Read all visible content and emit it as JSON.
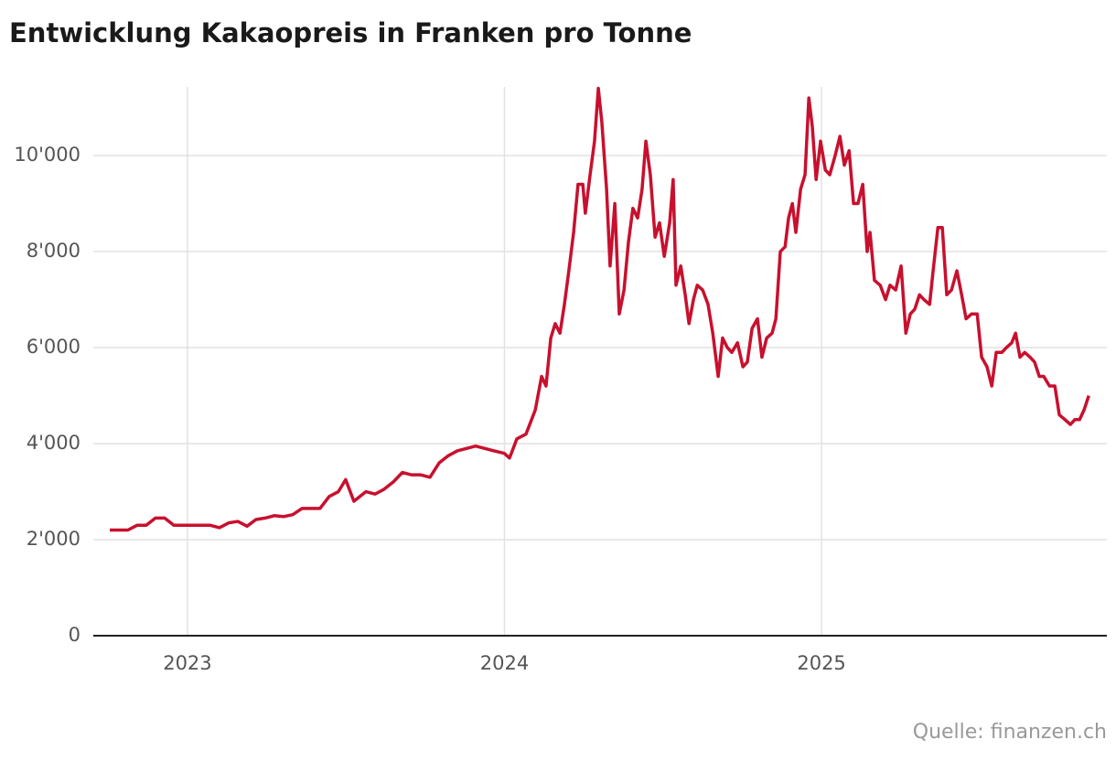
{
  "chart_data": {
    "type": "line",
    "title": "Entwicklung Kakaopreis in Franken pro Tonne",
    "source": "Quelle: finanzen.ch",
    "x": [
      2022.755,
      2022.784,
      2022.812,
      2022.841,
      2022.87,
      2022.899,
      2022.928,
      2022.957,
      2022.986,
      2023.014,
      2023.043,
      2023.072,
      2023.101,
      2023.13,
      2023.159,
      2023.188,
      2023.216,
      2023.245,
      2023.274,
      2023.303,
      2023.332,
      2023.361,
      2023.39,
      2023.418,
      2023.447,
      2023.476,
      2023.499,
      2023.525,
      2023.563,
      2023.592,
      2023.62,
      2023.649,
      2023.678,
      2023.707,
      2023.736,
      2023.765,
      2023.794,
      2023.823,
      2023.851,
      2023.88,
      2023.909,
      2023.938,
      2023.967,
      2023.999,
      2024.016,
      2024.039,
      2024.068,
      2024.097,
      2024.117,
      2024.131,
      2024.146,
      2024.16,
      2024.175,
      2024.189,
      2024.203,
      2024.218,
      2024.232,
      2024.247,
      2024.255,
      2024.27,
      2024.284,
      2024.296,
      2024.307,
      2024.322,
      2024.333,
      2024.348,
      2024.362,
      2024.377,
      2024.391,
      2024.405,
      2024.42,
      2024.434,
      2024.446,
      2024.46,
      2024.475,
      2024.489,
      2024.504,
      2024.521,
      2024.532,
      2024.541,
      2024.556,
      2024.57,
      2024.582,
      2024.596,
      2024.608,
      2024.625,
      2024.642,
      2024.657,
      2024.674,
      2024.688,
      2024.703,
      2024.717,
      2024.735,
      2024.752,
      2024.766,
      2024.781,
      2024.798,
      2024.812,
      2024.827,
      2024.844,
      2024.856,
      2024.87,
      2024.885,
      2024.896,
      2024.908,
      2024.919,
      2024.934,
      2024.948,
      2024.96,
      2024.971,
      2024.983,
      2024.997,
      2025.012,
      2025.026,
      2025.043,
      2025.058,
      2025.072,
      2025.087,
      2025.101,
      2025.115,
      2025.13,
      2025.144,
      2025.153,
      2025.167,
      2025.185,
      2025.202,
      2025.216,
      2025.234,
      2025.251,
      2025.266,
      2025.28,
      2025.294,
      2025.309,
      2025.323,
      2025.341,
      2025.352,
      2025.367,
      2025.381,
      2025.395,
      2025.41,
      2025.427,
      2025.442,
      2025.456,
      2025.473,
      2025.491,
      2025.505,
      2025.522,
      2025.537,
      2025.551,
      2025.569,
      2025.583,
      2025.6,
      2025.612,
      2025.626,
      2025.641,
      2025.658,
      2025.672,
      2025.687,
      2025.701,
      2025.719,
      2025.736,
      2025.75,
      2025.768,
      2025.785,
      2025.799,
      2025.814,
      2025.828,
      2025.843
    ],
    "series": [
      {
        "color": "#c8102e",
        "values": [
          2200,
          2200,
          2200,
          2300,
          2300,
          2450,
          2450,
          2300,
          2300,
          2300,
          2300,
          2300,
          2250,
          2350,
          2380,
          2280,
          2420,
          2450,
          2500,
          2480,
          2520,
          2650,
          2650,
          2650,
          2900,
          3000,
          3250,
          2800,
          3000,
          2950,
          3050,
          3200,
          3400,
          3350,
          3350,
          3300,
          3600,
          3750,
          3850,
          3900,
          3950,
          3900,
          3850,
          3800,
          3700,
          4100,
          4200,
          4700,
          5400,
          5200,
          6200,
          6500,
          6300,
          6900,
          7600,
          8400,
          9400,
          9400,
          8800,
          9600,
          10300,
          11400,
          10700,
          9300,
          7700,
          9000,
          6700,
          7200,
          8200,
          8900,
          8700,
          9300,
          10300,
          9600,
          8300,
          8600,
          7900,
          8600,
          9500,
          7300,
          7700,
          7100,
          6500,
          7000,
          7300,
          7200,
          6900,
          6300,
          5400,
          6200,
          6000,
          5900,
          6100,
          5600,
          5700,
          6400,
          6600,
          5800,
          6200,
          6300,
          6600,
          8000,
          8100,
          8700,
          9000,
          8400,
          9300,
          9600,
          11200,
          10600,
          9500,
          10300,
          9700,
          9600,
          10000,
          10400,
          9800,
          10100,
          9000,
          9000,
          9400,
          8000,
          8400,
          7400,
          7300,
          7000,
          7300,
          7200,
          7700,
          6300,
          6700,
          6800,
          7100,
          7000,
          6900,
          7600,
          8500,
          8500,
          7100,
          7200,
          7600,
          7100,
          6600,
          6700,
          6700,
          5800,
          5600,
          5200,
          5900,
          5900,
          6000,
          6100,
          6300,
          5800,
          5900,
          5800,
          5700,
          5400,
          5400,
          5200,
          5200,
          4600,
          4500,
          4400,
          4500,
          4500,
          4700,
          5000
        ]
      }
    ],
    "xlim": [
      2022.703,
      2025.9
    ],
    "xticks": [
      2023,
      2024,
      2025
    ],
    "ylim": [
      0,
      11430
    ],
    "yticks": [
      0,
      {
        "value": 2000,
        "label": "2'000"
      },
      {
        "value": 4000,
        "label": "4'000"
      },
      {
        "value": 6000,
        "label": "6'000"
      },
      {
        "value": 8000,
        "label": "8'000"
      },
      {
        "value": 10000,
        "label": "10'000"
      }
    ],
    "grid": true
  }
}
